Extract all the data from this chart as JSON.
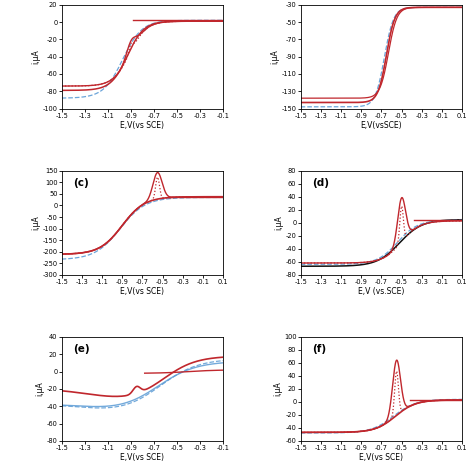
{
  "panels": [
    {
      "label": "",
      "xlim": [
        -1.5,
        -0.1
      ],
      "ylim": [
        -100,
        20
      ],
      "yticks": [
        20,
        0,
        -20,
        -40,
        -60,
        -80,
        -100
      ],
      "xticks": [
        -1.5,
        -1.3,
        -1.1,
        -0.9,
        -0.7,
        -0.5,
        -0.3,
        -0.1
      ],
      "xlabel": "E,V(vs SCE)",
      "ylabel": "i,μA"
    },
    {
      "label": "",
      "xlim": [
        -1.5,
        0.1
      ],
      "ylim": [
        -150,
        -30
      ],
      "yticks": [
        -30,
        -50,
        -70,
        -90,
        -110,
        -130,
        -150
      ],
      "xticks": [
        -1.5,
        -1.3,
        -1.1,
        -0.9,
        -0.7,
        -0.5,
        -0.3,
        -0.1,
        0.1
      ],
      "xlabel": "E,V(vsSCE)",
      "ylabel": "i,μA"
    },
    {
      "label": "(c)",
      "xlim": [
        -1.5,
        0.1
      ],
      "ylim": [
        -300,
        150
      ],
      "yticks": [
        150,
        100,
        50,
        0,
        -50,
        -100,
        -150,
        -200,
        -250,
        -300
      ],
      "xticks": [
        -1.5,
        -1.3,
        -1.1,
        -0.9,
        -0.7,
        -0.5,
        -0.3,
        -0.1,
        0.1
      ],
      "xlabel": "E,V(vs SCE)",
      "ylabel": "i,μA"
    },
    {
      "label": "(d)",
      "xlim": [
        -1.5,
        0.1
      ],
      "ylim": [
        -80,
        80
      ],
      "yticks": [
        80,
        60,
        40,
        20,
        0,
        -20,
        -40,
        -60,
        -80
      ],
      "xticks": [
        -1.5,
        -1.3,
        -1.1,
        -0.9,
        -0.7,
        -0.5,
        -0.3,
        -0.1,
        0.1
      ],
      "xlabel": "E,V (vs.SCE)",
      "ylabel": "i,μA"
    },
    {
      "label": "(e)",
      "xlim": [
        -1.5,
        -0.1
      ],
      "ylim": [
        -80,
        40
      ],
      "yticks": [
        40,
        20,
        0,
        -20,
        -40,
        -60,
        -80
      ],
      "xticks": [
        -1.5,
        -1.3,
        -1.1,
        -0.9,
        -0.7,
        -0.5,
        -0.3,
        -0.1
      ],
      "xlabel": "E,V(vs SCE)",
      "ylabel": "i,μA"
    },
    {
      "label": "(f)",
      "xlim": [
        -1.5,
        0.1
      ],
      "ylim": [
        -60,
        100
      ],
      "yticks": [
        100,
        80,
        60,
        40,
        20,
        0,
        -20,
        -40,
        -60
      ],
      "xticks": [
        -1.5,
        -1.3,
        -1.1,
        -0.9,
        -0.7,
        -0.5,
        -0.3,
        -0.1,
        0.1
      ],
      "xlabel": "E,V(vs SCE)",
      "ylabel": "i,μA"
    }
  ],
  "colors": {
    "red_solid": "#c0272d",
    "blue_dashed": "#5b9bd5",
    "black_solid": "#111111"
  }
}
